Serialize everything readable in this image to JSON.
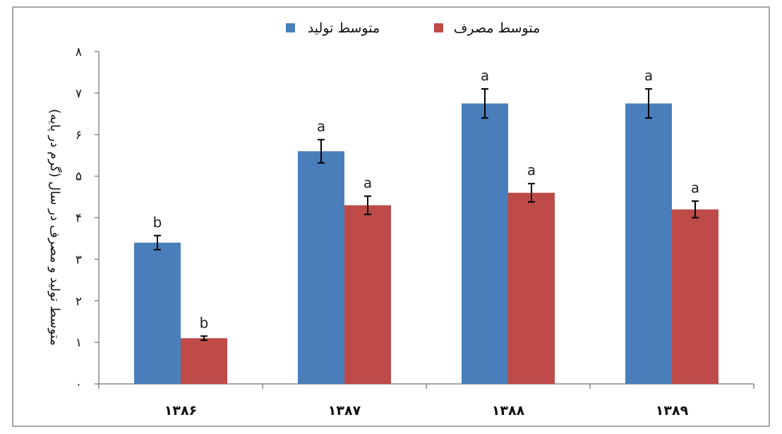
{
  "chart_data": {
    "type": "bar",
    "categories": [
      "۱۳۸۶",
      "۱۳۸۷",
      "۱۳۸۸",
      "۱۳۸۹"
    ],
    "series": [
      {
        "name": "متوسط تولید",
        "color": "#4a7ebb",
        "values": [
          3.4,
          5.6,
          6.75,
          6.75
        ],
        "error": [
          0.17,
          0.28,
          0.35,
          0.35
        ],
        "letters": [
          "b",
          "a",
          "a",
          "a"
        ]
      },
      {
        "name": "متوسط مصرف",
        "color": "#be4b48",
        "values": [
          1.1,
          4.3,
          4.6,
          4.2
        ],
        "error": [
          0.05,
          0.22,
          0.22,
          0.2
        ],
        "letters": [
          "b",
          "a",
          "a",
          "a"
        ]
      }
    ],
    "ylabel": "متوسط تولید و مصرف در سال (گرم در پایه)",
    "ylim": [
      0,
      8
    ],
    "yticks": [
      0,
      1,
      2,
      3,
      4,
      5,
      6,
      7,
      8
    ],
    "ytick_labels": [
      "۰",
      "۱",
      "۲",
      "۳",
      "۴",
      "۵",
      "۶",
      "۷",
      "۸"
    ],
    "grid": false,
    "legend": "top-center"
  }
}
